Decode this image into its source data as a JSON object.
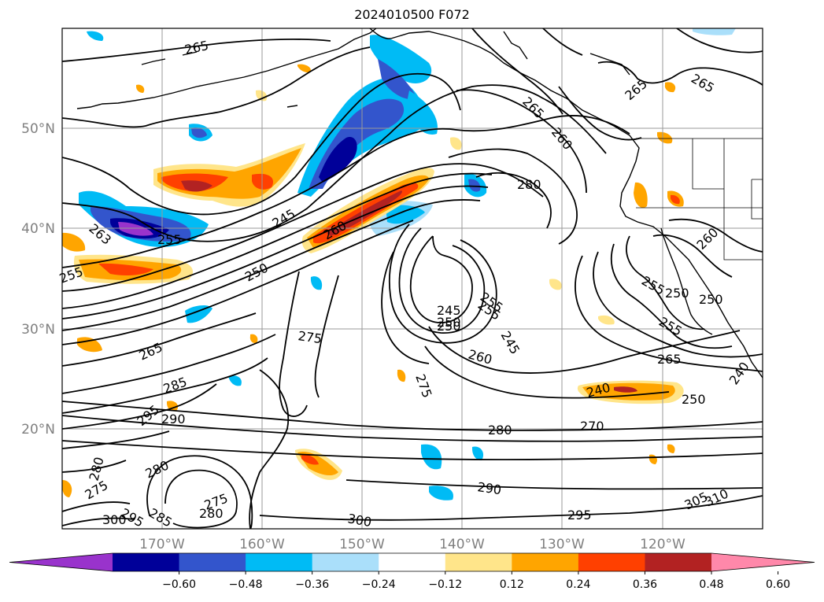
{
  "title": "2024010500 F072",
  "latitude_labels": [
    "50°N",
    "40°N",
    "30°N",
    "20°N"
  ],
  "longitude_labels": [
    "170°W",
    "160°W",
    "150°W",
    "140°W",
    "130°W",
    "120°W"
  ],
  "colorbar": {
    "ticks": [
      "−0.60",
      "−0.48",
      "−0.36",
      "−0.24",
      "−0.12",
      "0.12",
      "0.24",
      "0.36",
      "0.48",
      "0.60"
    ],
    "colors": [
      "#9933cc",
      "#000099",
      "#3355cc",
      "#00bbf5",
      "#aadffa",
      "#ffffff",
      "#ffe58a",
      "#ffa500",
      "#ff4000",
      "#b22222",
      "#ff88aa"
    ]
  },
  "contour_labels": [
    "265",
    "265",
    "265",
    "265",
    "260",
    "280",
    "245",
    "250",
    "255",
    "260",
    "263",
    "255",
    "255",
    "250",
    "265",
    "275",
    "285",
    "295",
    "290",
    "245",
    "250",
    "255",
    "245",
    "260",
    "275",
    "280",
    "270",
    "240",
    "250",
    "265",
    "260",
    "250",
    "255",
    "255",
    "250",
    "240",
    "280",
    "280",
    "275",
    "300",
    "295",
    "285",
    "275",
    "280",
    "300",
    "290",
    "295",
    "305",
    "310"
  ]
}
